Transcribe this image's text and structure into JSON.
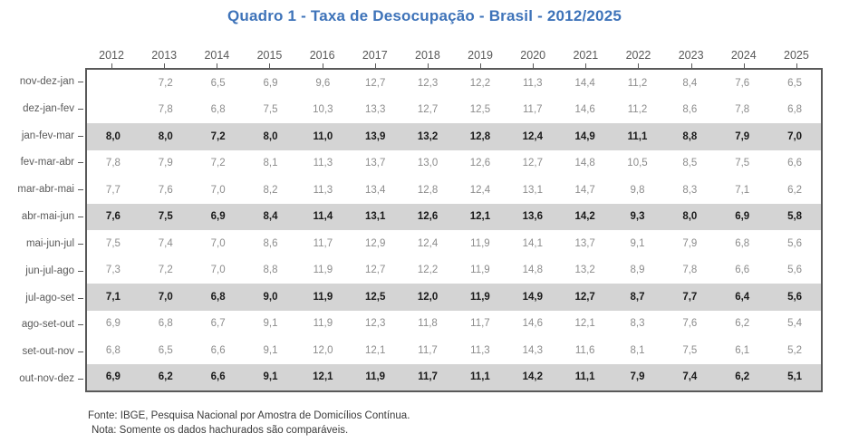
{
  "title": "Quadro 1 - Taxa de Desocupação - Brasil - 2012/2025",
  "colors": {
    "title_color": "#3E73B9",
    "band_color": "#D4D4D4",
    "value_color": "#8C8C8C",
    "hl_value_color": "#1A1A1A",
    "label_color": "#595959",
    "axis_color": "#595959"
  },
  "chart_data": {
    "type": "table",
    "title": "Quadro 1 - Taxa de Desocupação - Brasil - 2012/2025",
    "unit": "percent",
    "highlight_meaning": "hatched/shaded rows are the comparable quarterly data",
    "columns": [
      "2012",
      "2013",
      "2014",
      "2015",
      "2016",
      "2017",
      "2018",
      "2019",
      "2020",
      "2021",
      "2022",
      "2023",
      "2024",
      "2025"
    ],
    "rows": [
      {
        "label": "nov-dez-jan",
        "highlight": false,
        "values": [
          "",
          "7,2",
          "6,5",
          "6,9",
          "9,6",
          "12,7",
          "12,3",
          "12,2",
          "11,3",
          "14,4",
          "11,2",
          "8,4",
          "7,6",
          "6,5"
        ]
      },
      {
        "label": "dez-jan-fev",
        "highlight": false,
        "values": [
          "",
          "7,8",
          "6,8",
          "7,5",
          "10,3",
          "13,3",
          "12,7",
          "12,5",
          "11,7",
          "14,6",
          "11,2",
          "8,6",
          "7,8",
          "6,8"
        ]
      },
      {
        "label": "jan-fev-mar",
        "highlight": true,
        "values": [
          "8,0",
          "8,0",
          "7,2",
          "8,0",
          "11,0",
          "13,9",
          "13,2",
          "12,8",
          "12,4",
          "14,9",
          "11,1",
          "8,8",
          "7,9",
          "7,0"
        ]
      },
      {
        "label": "fev-mar-abr",
        "highlight": false,
        "values": [
          "7,8",
          "7,9",
          "7,2",
          "8,1",
          "11,3",
          "13,7",
          "13,0",
          "12,6",
          "12,7",
          "14,8",
          "10,5",
          "8,5",
          "7,5",
          "6,6"
        ]
      },
      {
        "label": "mar-abr-mai",
        "highlight": false,
        "values": [
          "7,7",
          "7,6",
          "7,0",
          "8,2",
          "11,3",
          "13,4",
          "12,8",
          "12,4",
          "13,1",
          "14,7",
          "9,8",
          "8,3",
          "7,1",
          "6,2"
        ]
      },
      {
        "label": "abr-mai-jun",
        "highlight": true,
        "values": [
          "7,6",
          "7,5",
          "6,9",
          "8,4",
          "11,4",
          "13,1",
          "12,6",
          "12,1",
          "13,6",
          "14,2",
          "9,3",
          "8,0",
          "6,9",
          "5,8"
        ]
      },
      {
        "label": "mai-jun-jul",
        "highlight": false,
        "values": [
          "7,5",
          "7,4",
          "7,0",
          "8,6",
          "11,7",
          "12,9",
          "12,4",
          "11,9",
          "14,1",
          "13,7",
          "9,1",
          "7,9",
          "6,8",
          "5,6"
        ]
      },
      {
        "label": "jun-jul-ago",
        "highlight": false,
        "values": [
          "7,3",
          "7,2",
          "7,0",
          "8,8",
          "11,9",
          "12,7",
          "12,2",
          "11,9",
          "14,8",
          "13,2",
          "8,9",
          "7,8",
          "6,6",
          "5,6"
        ]
      },
      {
        "label": "jul-ago-set",
        "highlight": true,
        "values": [
          "7,1",
          "7,0",
          "6,8",
          "9,0",
          "11,9",
          "12,5",
          "12,0",
          "11,9",
          "14,9",
          "12,7",
          "8,7",
          "7,7",
          "6,4",
          "5,6"
        ]
      },
      {
        "label": "ago-set-out",
        "highlight": false,
        "values": [
          "6,9",
          "6,8",
          "6,7",
          "9,1",
          "11,9",
          "12,3",
          "11,8",
          "11,7",
          "14,6",
          "12,1",
          "8,3",
          "7,6",
          "6,2",
          "5,4"
        ]
      },
      {
        "label": "set-out-nov",
        "highlight": false,
        "values": [
          "6,8",
          "6,5",
          "6,6",
          "9,1",
          "12,0",
          "12,1",
          "11,7",
          "11,3",
          "14,3",
          "11,6",
          "8,1",
          "7,5",
          "6,1",
          "5,2"
        ]
      },
      {
        "label": "out-nov-dez",
        "highlight": true,
        "values": [
          "6,9",
          "6,2",
          "6,6",
          "9,1",
          "12,1",
          "11,9",
          "11,7",
          "11,1",
          "14,2",
          "11,1",
          "7,9",
          "7,4",
          "6,2",
          "5,1"
        ]
      }
    ]
  },
  "footer": {
    "fonte": "Fonte: IBGE, Pesquisa Nacional por Amostra de Domicílios Contínua.",
    "nota": "Nota: Somente os dados hachurados são comparáveis."
  }
}
